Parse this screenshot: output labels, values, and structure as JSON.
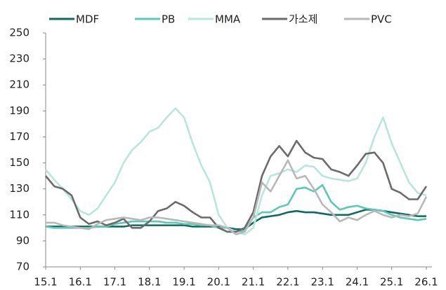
{
  "chart_data": {
    "type": "line",
    "categories": [
      "15.1",
      null,
      null,
      null,
      "16.1",
      null,
      null,
      null,
      "17.1",
      null,
      null,
      null,
      "18.1",
      null,
      null,
      null,
      "19.1",
      null,
      null,
      null,
      "20.1",
      null,
      null,
      null,
      "21.1",
      null,
      null,
      null,
      "22.1",
      null,
      null,
      null,
      "23.1",
      null,
      null,
      null,
      "24.1",
      null,
      null,
      null,
      "25.1",
      null,
      null,
      null,
      "26.1"
    ],
    "series": [
      {
        "name": "MDF",
        "color": "#0e6b5c",
        "values": [
          101,
          101,
          101,
          101,
          101,
          101,
          101,
          101,
          101,
          101,
          102,
          102,
          102,
          102,
          102,
          102,
          102,
          101,
          101,
          101,
          101,
          100,
          99,
          99,
          104,
          108,
          109,
          110,
          112,
          113,
          112,
          112,
          111,
          110,
          110,
          110,
          112,
          114,
          114,
          113,
          112,
          111,
          110,
          109,
          109
        ]
      },
      {
        "name": "PB",
        "color": "#5cc8b5",
        "values": [
          101,
          100,
          100,
          100,
          100,
          100,
          101,
          101,
          103,
          104,
          105,
          105,
          105,
          105,
          104,
          104,
          103,
          103,
          102,
          102,
          100,
          100,
          97,
          98,
          108,
          112,
          112,
          116,
          118,
          130,
          131,
          128,
          133,
          120,
          114,
          116,
          117,
          115,
          114,
          113,
          110,
          108,
          107,
          106,
          107
        ]
      },
      {
        "name": "MMA",
        "color": "#b8e6dc",
        "values": [
          145,
          137,
          130,
          122,
          113,
          110,
          115,
          125,
          135,
          150,
          160,
          166,
          174,
          177,
          185,
          192,
          185,
          165,
          148,
          135,
          110,
          100,
          97,
          95,
          100,
          125,
          140,
          142,
          145,
          143,
          148,
          147,
          140,
          138,
          137,
          136,
          138,
          150,
          170,
          185,
          165,
          150,
          135,
          127,
          125
        ]
      },
      {
        "name": "가소제",
        "color": "#6b6b6b",
        "values": [
          140,
          132,
          130,
          125,
          108,
          103,
          105,
          102,
          104,
          107,
          100,
          100,
          105,
          113,
          115,
          120,
          117,
          112,
          108,
          108,
          100,
          97,
          97,
          100,
          112,
          140,
          155,
          163,
          155,
          167,
          158,
          154,
          153,
          145,
          143,
          140,
          148,
          157,
          158,
          150,
          130,
          127,
          122,
          122,
          132
        ]
      },
      {
        "name": "PVC",
        "color": "#b8b8b8",
        "values": [
          104,
          104,
          102,
          101,
          100,
          99,
          103,
          106,
          107,
          108,
          107,
          106,
          108,
          108,
          107,
          106,
          105,
          104,
          103,
          102,
          102,
          100,
          95,
          97,
          108,
          135,
          128,
          140,
          152,
          138,
          140,
          130,
          118,
          112,
          105,
          108,
          106,
          110,
          113,
          110,
          108,
          110,
          109,
          111,
          124
        ]
      }
    ],
    "ylim": [
      70,
      250
    ],
    "yticks": [
      70,
      90,
      110,
      130,
      150,
      170,
      190,
      210,
      230,
      250
    ],
    "legend": "top"
  }
}
